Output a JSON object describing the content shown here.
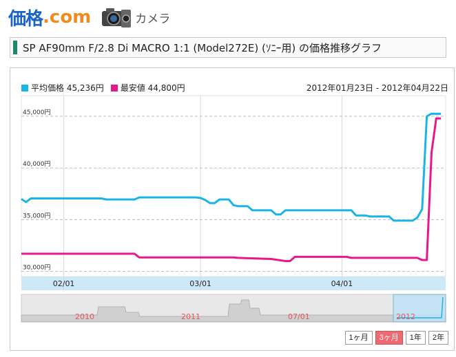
{
  "header": {
    "logo_main": "価格",
    "logo_dot": ".",
    "logo_com": "com",
    "category": "カメラ",
    "icon": "camera-icon"
  },
  "title": "SP AF90mm F/2.8 Di MACRO 1:1 (Model272E) (ｿﾆｰ用) の価格推移グラフ",
  "colors": {
    "average": "#1ab4e6",
    "lowest": "#e6198a",
    "accent": "#1a8a6a",
    "active_button": "#f06a72"
  },
  "legend": {
    "average": "平均価格 45,236円",
    "lowest": "最安値 44,800円"
  },
  "date_range": "2012年01月23日 - 2012年04月22日",
  "range_buttons": [
    {
      "label": "1ヶ月",
      "active": false
    },
    {
      "label": "3ヶ月",
      "active": true
    },
    {
      "label": "1年",
      "active": false
    },
    {
      "label": "2年",
      "active": false
    }
  ],
  "navigator": {
    "labels": [
      "2010",
      "2011",
      "07/01",
      "2012"
    ]
  },
  "chart_data": {
    "type": "line",
    "ylim": [
      29500,
      47000
    ],
    "yticks": [
      30000,
      35000,
      40000,
      45000
    ],
    "ytick_labels": [
      "30,000円",
      "35,000円",
      "40,000円",
      "45,000円"
    ],
    "xlim": [
      0,
      90
    ],
    "xticks": [
      9,
      38,
      68
    ],
    "xtick_labels": [
      "02/01",
      "03/01",
      "04/01"
    ],
    "grid": true,
    "series": [
      {
        "name": "平均価格",
        "color": "#1ab4e6",
        "points": [
          [
            0,
            37000
          ],
          [
            1,
            36700
          ],
          [
            2,
            37050
          ],
          [
            17,
            37050
          ],
          [
            18,
            36950
          ],
          [
            24,
            36950
          ],
          [
            25,
            37150
          ],
          [
            37,
            37150
          ],
          [
            38,
            37100
          ],
          [
            39,
            36900
          ],
          [
            40,
            36600
          ],
          [
            41,
            36600
          ],
          [
            42,
            36950
          ],
          [
            44,
            36950
          ],
          [
            45,
            36400
          ],
          [
            46,
            36300
          ],
          [
            48,
            36300
          ],
          [
            49,
            35900
          ],
          [
            53,
            35900
          ],
          [
            54,
            35500
          ],
          [
            55,
            35500
          ],
          [
            56,
            35900
          ],
          [
            70,
            35900
          ],
          [
            71,
            35400
          ],
          [
            73,
            35400
          ],
          [
            74,
            35300
          ],
          [
            78,
            35300
          ],
          [
            79,
            34900
          ],
          [
            83,
            34900
          ],
          [
            84,
            35200
          ],
          [
            85,
            36000
          ],
          [
            86,
            45000
          ],
          [
            87,
            45250
          ],
          [
            89,
            45236
          ]
        ]
      },
      {
        "name": "最安値",
        "color": "#e6198a",
        "points": [
          [
            0,
            31700
          ],
          [
            24,
            31700
          ],
          [
            25,
            31350
          ],
          [
            45,
            31350
          ],
          [
            46,
            31300
          ],
          [
            53,
            31200
          ],
          [
            56,
            31000
          ],
          [
            57,
            31000
          ],
          [
            58,
            31400
          ],
          [
            69,
            31400
          ],
          [
            70,
            31300
          ],
          [
            84,
            31300
          ],
          [
            85,
            31100
          ],
          [
            86,
            31100
          ],
          [
            87,
            41500
          ],
          [
            88,
            44800
          ],
          [
            89,
            44800
          ]
        ]
      }
    ]
  }
}
